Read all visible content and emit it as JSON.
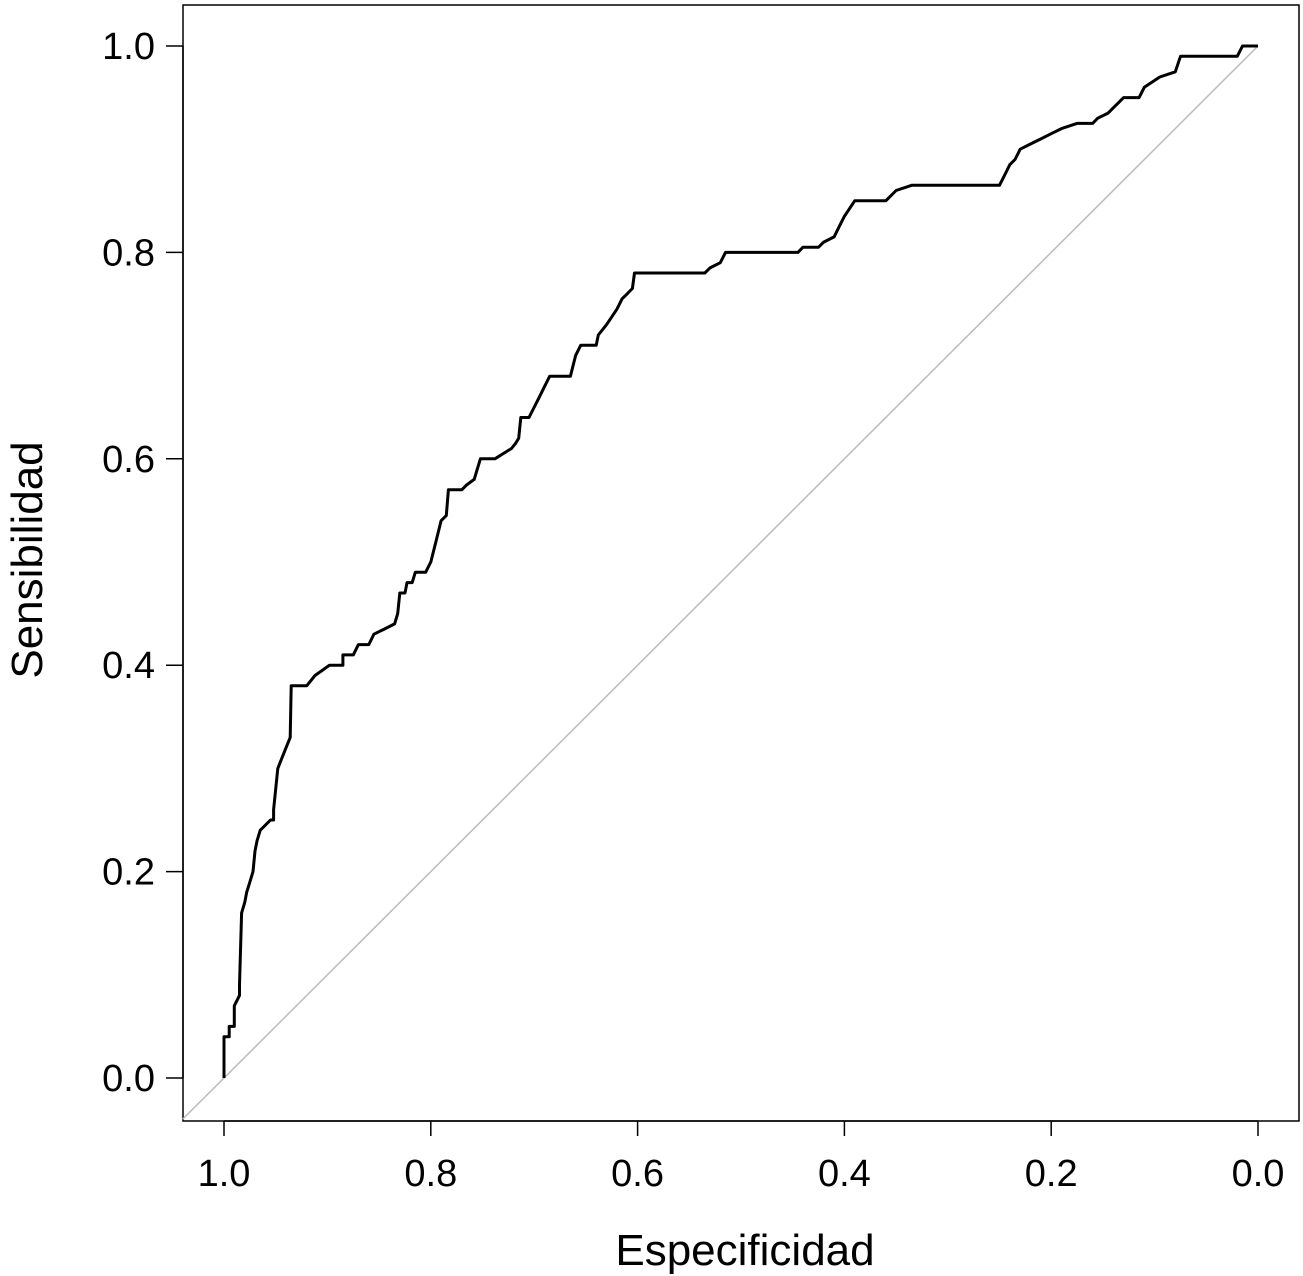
{
  "chart_data": {
    "type": "line",
    "title": "",
    "xlabel": "Especificidad",
    "ylabel": "Sensibilidad",
    "xlim": [
      1.0,
      0.0
    ],
    "ylim": [
      0.0,
      1.0
    ],
    "x_reversed": true,
    "grid": false,
    "x_ticks": [
      1.0,
      0.8,
      0.6,
      0.4,
      0.2,
      0.0
    ],
    "x_tick_labels": [
      "1.0",
      "0.8",
      "0.6",
      "0.4",
      "0.2",
      "0.0"
    ],
    "y_ticks": [
      0.0,
      0.2,
      0.4,
      0.6,
      0.8,
      1.0
    ],
    "y_tick_labels": [
      "0.0",
      "0.2",
      "0.4",
      "0.6",
      "0.8",
      "1.0"
    ],
    "reference_line": {
      "from": [
        1.0,
        0.0
      ],
      "to": [
        0.0,
        1.0
      ],
      "color": "#bbbbbb"
    },
    "series": [
      {
        "color": "#000000",
        "points": [
          [
            1.0,
            0.0
          ],
          [
            1.0,
            0.04
          ],
          [
            0.995,
            0.04
          ],
          [
            0.995,
            0.05
          ],
          [
            0.99,
            0.05
          ],
          [
            0.99,
            0.07
          ],
          [
            0.985,
            0.08
          ],
          [
            0.985,
            0.09
          ],
          [
            0.983,
            0.16
          ],
          [
            0.98,
            0.17
          ],
          [
            0.978,
            0.18
          ],
          [
            0.975,
            0.19
          ],
          [
            0.972,
            0.2
          ],
          [
            0.97,
            0.22
          ],
          [
            0.968,
            0.23
          ],
          [
            0.965,
            0.24
          ],
          [
            0.955,
            0.25
          ],
          [
            0.952,
            0.25
          ],
          [
            0.952,
            0.26
          ],
          [
            0.948,
            0.3
          ],
          [
            0.944,
            0.31
          ],
          [
            0.94,
            0.32
          ],
          [
            0.936,
            0.33
          ],
          [
            0.935,
            0.38
          ],
          [
            0.92,
            0.38
          ],
          [
            0.912,
            0.39
          ],
          [
            0.905,
            0.395
          ],
          [
            0.898,
            0.4
          ],
          [
            0.885,
            0.4
          ],
          [
            0.885,
            0.41
          ],
          [
            0.875,
            0.41
          ],
          [
            0.87,
            0.42
          ],
          [
            0.86,
            0.42
          ],
          [
            0.855,
            0.43
          ],
          [
            0.845,
            0.435
          ],
          [
            0.835,
            0.44
          ],
          [
            0.832,
            0.45
          ],
          [
            0.83,
            0.47
          ],
          [
            0.825,
            0.47
          ],
          [
            0.823,
            0.48
          ],
          [
            0.818,
            0.48
          ],
          [
            0.815,
            0.49
          ],
          [
            0.805,
            0.49
          ],
          [
            0.8,
            0.5
          ],
          [
            0.795,
            0.52
          ],
          [
            0.79,
            0.54
          ],
          [
            0.785,
            0.545
          ],
          [
            0.783,
            0.57
          ],
          [
            0.77,
            0.57
          ],
          [
            0.765,
            0.575
          ],
          [
            0.758,
            0.58
          ],
          [
            0.755,
            0.59
          ],
          [
            0.752,
            0.6
          ],
          [
            0.738,
            0.6
          ],
          [
            0.73,
            0.605
          ],
          [
            0.722,
            0.61
          ],
          [
            0.718,
            0.615
          ],
          [
            0.715,
            0.62
          ],
          [
            0.713,
            0.64
          ],
          [
            0.705,
            0.64
          ],
          [
            0.695,
            0.66
          ],
          [
            0.69,
            0.67
          ],
          [
            0.685,
            0.68
          ],
          [
            0.665,
            0.68
          ],
          [
            0.66,
            0.7
          ],
          [
            0.655,
            0.71
          ],
          [
            0.64,
            0.71
          ],
          [
            0.638,
            0.72
          ],
          [
            0.63,
            0.73
          ],
          [
            0.62,
            0.745
          ],
          [
            0.615,
            0.755
          ],
          [
            0.61,
            0.76
          ],
          [
            0.605,
            0.765
          ],
          [
            0.603,
            0.78
          ],
          [
            0.535,
            0.78
          ],
          [
            0.53,
            0.785
          ],
          [
            0.52,
            0.79
          ],
          [
            0.515,
            0.8
          ],
          [
            0.445,
            0.8
          ],
          [
            0.44,
            0.805
          ],
          [
            0.425,
            0.805
          ],
          [
            0.42,
            0.81
          ],
          [
            0.41,
            0.815
          ],
          [
            0.405,
            0.825
          ],
          [
            0.4,
            0.835
          ],
          [
            0.39,
            0.85
          ],
          [
            0.36,
            0.85
          ],
          [
            0.35,
            0.86
          ],
          [
            0.335,
            0.865
          ],
          [
            0.25,
            0.865
          ],
          [
            0.245,
            0.875
          ],
          [
            0.24,
            0.885
          ],
          [
            0.235,
            0.89
          ],
          [
            0.23,
            0.9
          ],
          [
            0.22,
            0.905
          ],
          [
            0.21,
            0.91
          ],
          [
            0.2,
            0.915
          ],
          [
            0.19,
            0.92
          ],
          [
            0.175,
            0.925
          ],
          [
            0.16,
            0.925
          ],
          [
            0.155,
            0.93
          ],
          [
            0.145,
            0.935
          ],
          [
            0.14,
            0.94
          ],
          [
            0.135,
            0.945
          ],
          [
            0.13,
            0.95
          ],
          [
            0.115,
            0.95
          ],
          [
            0.11,
            0.96
          ],
          [
            0.095,
            0.97
          ],
          [
            0.08,
            0.975
          ],
          [
            0.075,
            0.99
          ],
          [
            0.02,
            0.99
          ],
          [
            0.015,
            1.0
          ],
          [
            0.0,
            1.0
          ]
        ]
      }
    ]
  }
}
